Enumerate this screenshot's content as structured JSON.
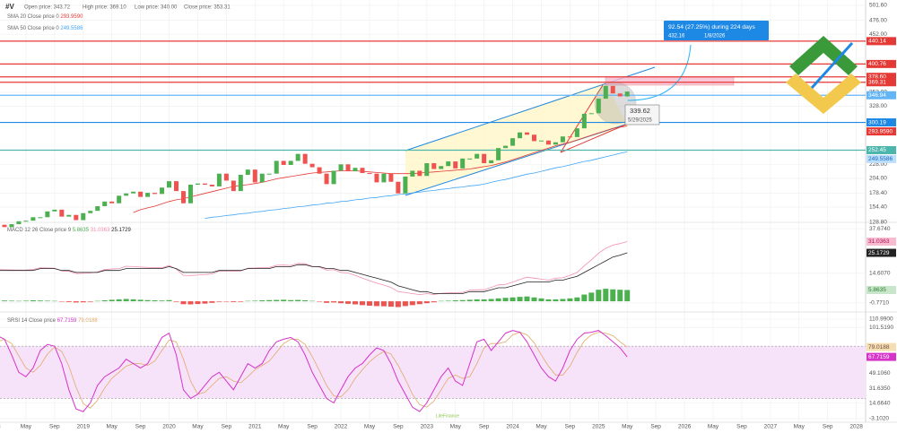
{
  "header": {
    "symbol": "#V",
    "open": "Open price: 343.72",
    "high": "High price: 369.10",
    "low": "Low price: 340.00",
    "close": "Close price: 353.31",
    "watermark": "LiteFinance"
  },
  "chart_data": [
    {
      "type": "candlestick",
      "up_color": "#4caf50",
      "down_color": "#ef5350",
      "values": [
        124,
        120,
        125,
        130,
        131,
        137,
        137,
        147,
        150,
        138,
        141,
        132,
        144,
        148,
        156,
        164,
        161,
        174,
        178,
        181,
        172,
        179,
        177,
        188,
        199,
        182,
        161,
        193,
        195,
        193,
        190,
        212,
        200,
        182,
        210,
        219,
        197,
        212,
        212,
        234,
        227,
        234,
        246,
        229,
        223,
        212,
        194,
        217,
        228,
        216,
        222,
        213,
        212,
        197,
        212,
        198,
        178,
        207,
        217,
        208,
        230,
        220,
        225,
        233,
        221,
        238,
        238,
        246,
        230,
        235,
        256,
        260,
        273,
        283,
        279,
        268,
        269,
        262,
        266,
        276,
        275,
        290,
        315,
        316,
        341,
        363,
        350,
        345,
        353.31
      ],
      "ylim": [
        128.2,
        510.9
      ],
      "yticks": [
        {
          "value": 501.6,
          "label": "501.60"
        },
        {
          "value": 476,
          "label": "476.00"
        },
        {
          "value": 452,
          "label": "452.00"
        },
        {
          "value": 352,
          "label": "352.00"
        },
        {
          "value": 328,
          "label": "328.00"
        },
        {
          "value": 228,
          "label": "228.00"
        },
        {
          "value": 204,
          "label": "204.00"
        },
        {
          "value": 178.4,
          "label": "178.40"
        },
        {
          "value": 154.4,
          "label": "154.40"
        },
        {
          "value": 128.8,
          "label": "128.80"
        }
      ],
      "series": [
        {
          "name": "SMA 20 Close price 0",
          "color": "#e53935",
          "last_label": "293.9590",
          "values": [
            null,
            null,
            null,
            null,
            null,
            null,
            null,
            null,
            null,
            null,
            null,
            null,
            null,
            null,
            null,
            null,
            null,
            null,
            null,
            145,
            150,
            153,
            156,
            160,
            164,
            167,
            169,
            172,
            175,
            178,
            181,
            184,
            187,
            190,
            192,
            193,
            195,
            197,
            200,
            203,
            205,
            207,
            209,
            211,
            213,
            214,
            215,
            216,
            217,
            217,
            217,
            216,
            215,
            214,
            213,
            212,
            212,
            212,
            212,
            213,
            214,
            215,
            216,
            217,
            218,
            219,
            220,
            222,
            224,
            226,
            229,
            232,
            236,
            240,
            244,
            248,
            252,
            256,
            260,
            263,
            266,
            270,
            274,
            278,
            282,
            286,
            290,
            292,
            293.959
          ]
        },
        {
          "name": "SMA 50 Close price 0",
          "color": "#42a5f5",
          "values": [
            null,
            null,
            null,
            null,
            null,
            null,
            null,
            null,
            null,
            null,
            null,
            null,
            null,
            null,
            null,
            null,
            null,
            null,
            null,
            null,
            null,
            null,
            null,
            null,
            null,
            null,
            null,
            null,
            null,
            135,
            137,
            138,
            140,
            141,
            143,
            144,
            146,
            147,
            149,
            150,
            152,
            153,
            155,
            156,
            158,
            159,
            161,
            162,
            164,
            165,
            167,
            168,
            170,
            171,
            173,
            174,
            176,
            177,
            179,
            180,
            182,
            183,
            185,
            186,
            188,
            189,
            191,
            192,
            194,
            197,
            200,
            202,
            205,
            208,
            211,
            213,
            216,
            219,
            222,
            224,
            227,
            230,
            233,
            235,
            238,
            241,
            244,
            247,
            249.5586
          ]
        }
      ],
      "levels": [
        {
          "value": 440.14,
          "color": "#e53935"
        },
        {
          "value": 400.76,
          "color": "#e53935"
        },
        {
          "value": 378.6,
          "label": "378.60",
          "color": "#e53935"
        },
        {
          "value": 369.31,
          "color": "#e53935"
        },
        {
          "value": 346.94,
          "color": "#64b5f6"
        },
        {
          "value": 300.19,
          "color": "#1e88e5"
        },
        {
          "value": 252.45,
          "color": "#4db6ac"
        }
      ],
      "annotation": {
        "text": "92.54 (27.25%) during 224 days",
        "price": "432.16",
        "date": "1/8/2026"
      },
      "marker": {
        "price": "339.62",
        "date": "5/29/2025"
      },
      "x_labels": [
        "18",
        "May",
        "Sep",
        "2019",
        "May",
        "Sep",
        "2020",
        "May",
        "Sep",
        "2021",
        "May",
        "Sep",
        "2022",
        "May",
        "Sep",
        "2023",
        "May",
        "Sep",
        "2024",
        "May",
        "Sep",
        "2025",
        "May",
        "Sep",
        "2026",
        "May",
        "Sep",
        "2027",
        "May",
        "Sep",
        "2028"
      ]
    },
    {
      "type": "macd",
      "title": "MACD 12 26 Close price 9",
      "ylim": [
        -5.09,
        40.56
      ],
      "yticks": [
        {
          "value": 37.674,
          "label": "37.6740"
        },
        {
          "value": 14.607,
          "label": "14.6070"
        },
        {
          "value": -0.771,
          "label": "-0.7710"
        }
      ],
      "histogram": {
        "color_up": "#4caf50",
        "color_down": "#ef5350",
        "values": [
          0.5,
          0.4,
          0.3,
          0.2,
          0.3,
          0.5,
          0.4,
          0.3,
          0.2,
          -0.2,
          -0.4,
          -0.6,
          -0.5,
          -0.3,
          0.2,
          0.5,
          0.8,
          1,
          1.2,
          1,
          0.8,
          0.6,
          0.5,
          0.4,
          0.6,
          -0.3,
          -1.5,
          -1.6,
          -1.4,
          -1.2,
          -0.8,
          -0.3,
          -0.2,
          -0.4,
          -0.3,
          0.2,
          0.3,
          0.5,
          0.6,
          0.7,
          0.8,
          0.6,
          0.7,
          0.5,
          0.2,
          -0.2,
          -0.8,
          -0.6,
          -1,
          -1.3,
          -1.6,
          -2,
          -2.3,
          -2.5,
          -2.6,
          -2.8,
          -3,
          -2.5,
          -2,
          -1.5,
          -1,
          -0.5,
          0.2,
          0.3,
          0.5,
          0.6,
          0.8,
          1,
          1,
          1.2,
          1.5,
          1.8,
          2,
          2.3,
          2.5,
          2,
          1.5,
          1,
          1,
          1.2,
          1.5,
          2,
          3.5,
          4.5,
          6,
          6.5,
          6.2,
          6,
          5.8635
        ]
      },
      "series": [
        {
          "color": "#f48fb1",
          "values": [
            16.5,
            16.4,
            16.3,
            16.2,
            16.3,
            16.5,
            17.4,
            17.3,
            17.2,
            15.8,
            15.6,
            14.4,
            14.5,
            14.7,
            15.2,
            16.5,
            16.8,
            17,
            18.2,
            18,
            17.8,
            17.6,
            17.5,
            17.4,
            18.6,
            16.7,
            13.5,
            13.4,
            13.6,
            13.8,
            14.2,
            15.7,
            15.8,
            15.6,
            15.7,
            17.2,
            17.3,
            17.5,
            17.6,
            18.7,
            18.8,
            18.6,
            19.7,
            19.5,
            18.2,
            17.8,
            16.2,
            16.4,
            15,
            14.7,
            13.4,
            12,
            10.7,
            9.5,
            8.4,
            7.2,
            5,
            4.5,
            4,
            3.5,
            4,
            3.5,
            4.2,
            4.3,
            4.5,
            4.6,
            5.8,
            6,
            6,
            7.2,
            8.5,
            8.8,
            10,
            11.3,
            12.5,
            12,
            11.5,
            11,
            12,
            12.2,
            13.5,
            15,
            18.5,
            21.5,
            25,
            27.5,
            29.2,
            30,
            31.0363
          ]
        },
        {
          "color": "#222",
          "values": [
            16,
            16,
            16,
            16,
            16,
            16,
            17,
            17,
            17,
            16,
            16,
            15,
            15,
            15,
            15,
            16,
            16,
            16,
            17,
            17,
            17,
            17,
            17,
            17,
            18,
            17,
            15,
            15,
            15,
            15,
            15,
            16,
            16,
            16,
            16,
            17,
            17,
            17,
            17,
            18,
            18,
            18,
            19,
            19,
            18,
            18,
            17,
            17,
            16,
            16,
            15,
            14,
            13,
            12,
            11,
            10,
            8,
            7,
            6,
            5,
            5,
            4,
            4,
            4,
            4,
            4,
            5,
            5,
            5,
            6,
            7,
            7,
            8,
            9,
            10,
            10,
            10,
            10,
            11,
            11,
            12,
            13,
            15,
            17,
            19,
            21,
            23,
            24,
            25.1729
          ]
        }
      ]
    },
    {
      "type": "srsi",
      "title": "SRSI 14 Close price",
      "ylim": [
        -6.2,
        118.2
      ],
      "band": [
        20,
        80
      ],
      "yticks": [
        {
          "value": 110.99,
          "label": "110.9900"
        },
        {
          "value": 101.519,
          "label": "101.5190"
        },
        {
          "value": 49.106,
          "label": "49.1060"
        },
        {
          "value": 31.635,
          "label": "31.6350"
        },
        {
          "value": 14.664,
          "label": "14.6640"
        },
        {
          "value": -3.102,
          "label": "-3.1020"
        }
      ],
      "series": [
        {
          "color": "#d633c9",
          "values": [
            92,
            88,
            70,
            50,
            45,
            55,
            75,
            82,
            80,
            60,
            30,
            8,
            5,
            15,
            35,
            45,
            50,
            55,
            65,
            60,
            55,
            60,
            75,
            90,
            95,
            70,
            30,
            20,
            25,
            35,
            45,
            50,
            40,
            30,
            45,
            60,
            55,
            60,
            75,
            85,
            88,
            90,
            85,
            70,
            50,
            35,
            20,
            15,
            30,
            45,
            55,
            60,
            70,
            78,
            75,
            60,
            40,
            25,
            10,
            5,
            15,
            30,
            45,
            55,
            40,
            35,
            60,
            85,
            88,
            75,
            85,
            95,
            98,
            96,
            85,
            70,
            55,
            45,
            40,
            55,
            75,
            88,
            95,
            96,
            98,
            92,
            85,
            78,
            67.7159
          ]
        },
        {
          "color": "#e0a96a",
          "values": [
            85,
            88,
            83,
            69,
            55,
            50,
            58,
            71,
            79,
            74,
            57,
            33,
            14,
            9,
            18,
            32,
            43,
            50,
            57,
            60,
            60,
            58,
            63,
            75,
            87,
            85,
            65,
            40,
            25,
            27,
            35,
            43,
            45,
            40,
            38,
            45,
            53,
            58,
            63,
            73,
            83,
            88,
            88,
            82,
            68,
            52,
            35,
            23,
            22,
            30,
            43,
            53,
            62,
            69,
            74,
            71,
            58,
            42,
            25,
            13,
            10,
            17,
            30,
            43,
            47,
            43,
            45,
            60,
            78,
            83,
            83,
            85,
            93,
            96,
            93,
            84,
            70,
            57,
            47,
            47,
            57,
            73,
            86,
            93,
            96,
            95,
            92,
            85,
            79.0188
          ]
        }
      ]
    }
  ]
}
